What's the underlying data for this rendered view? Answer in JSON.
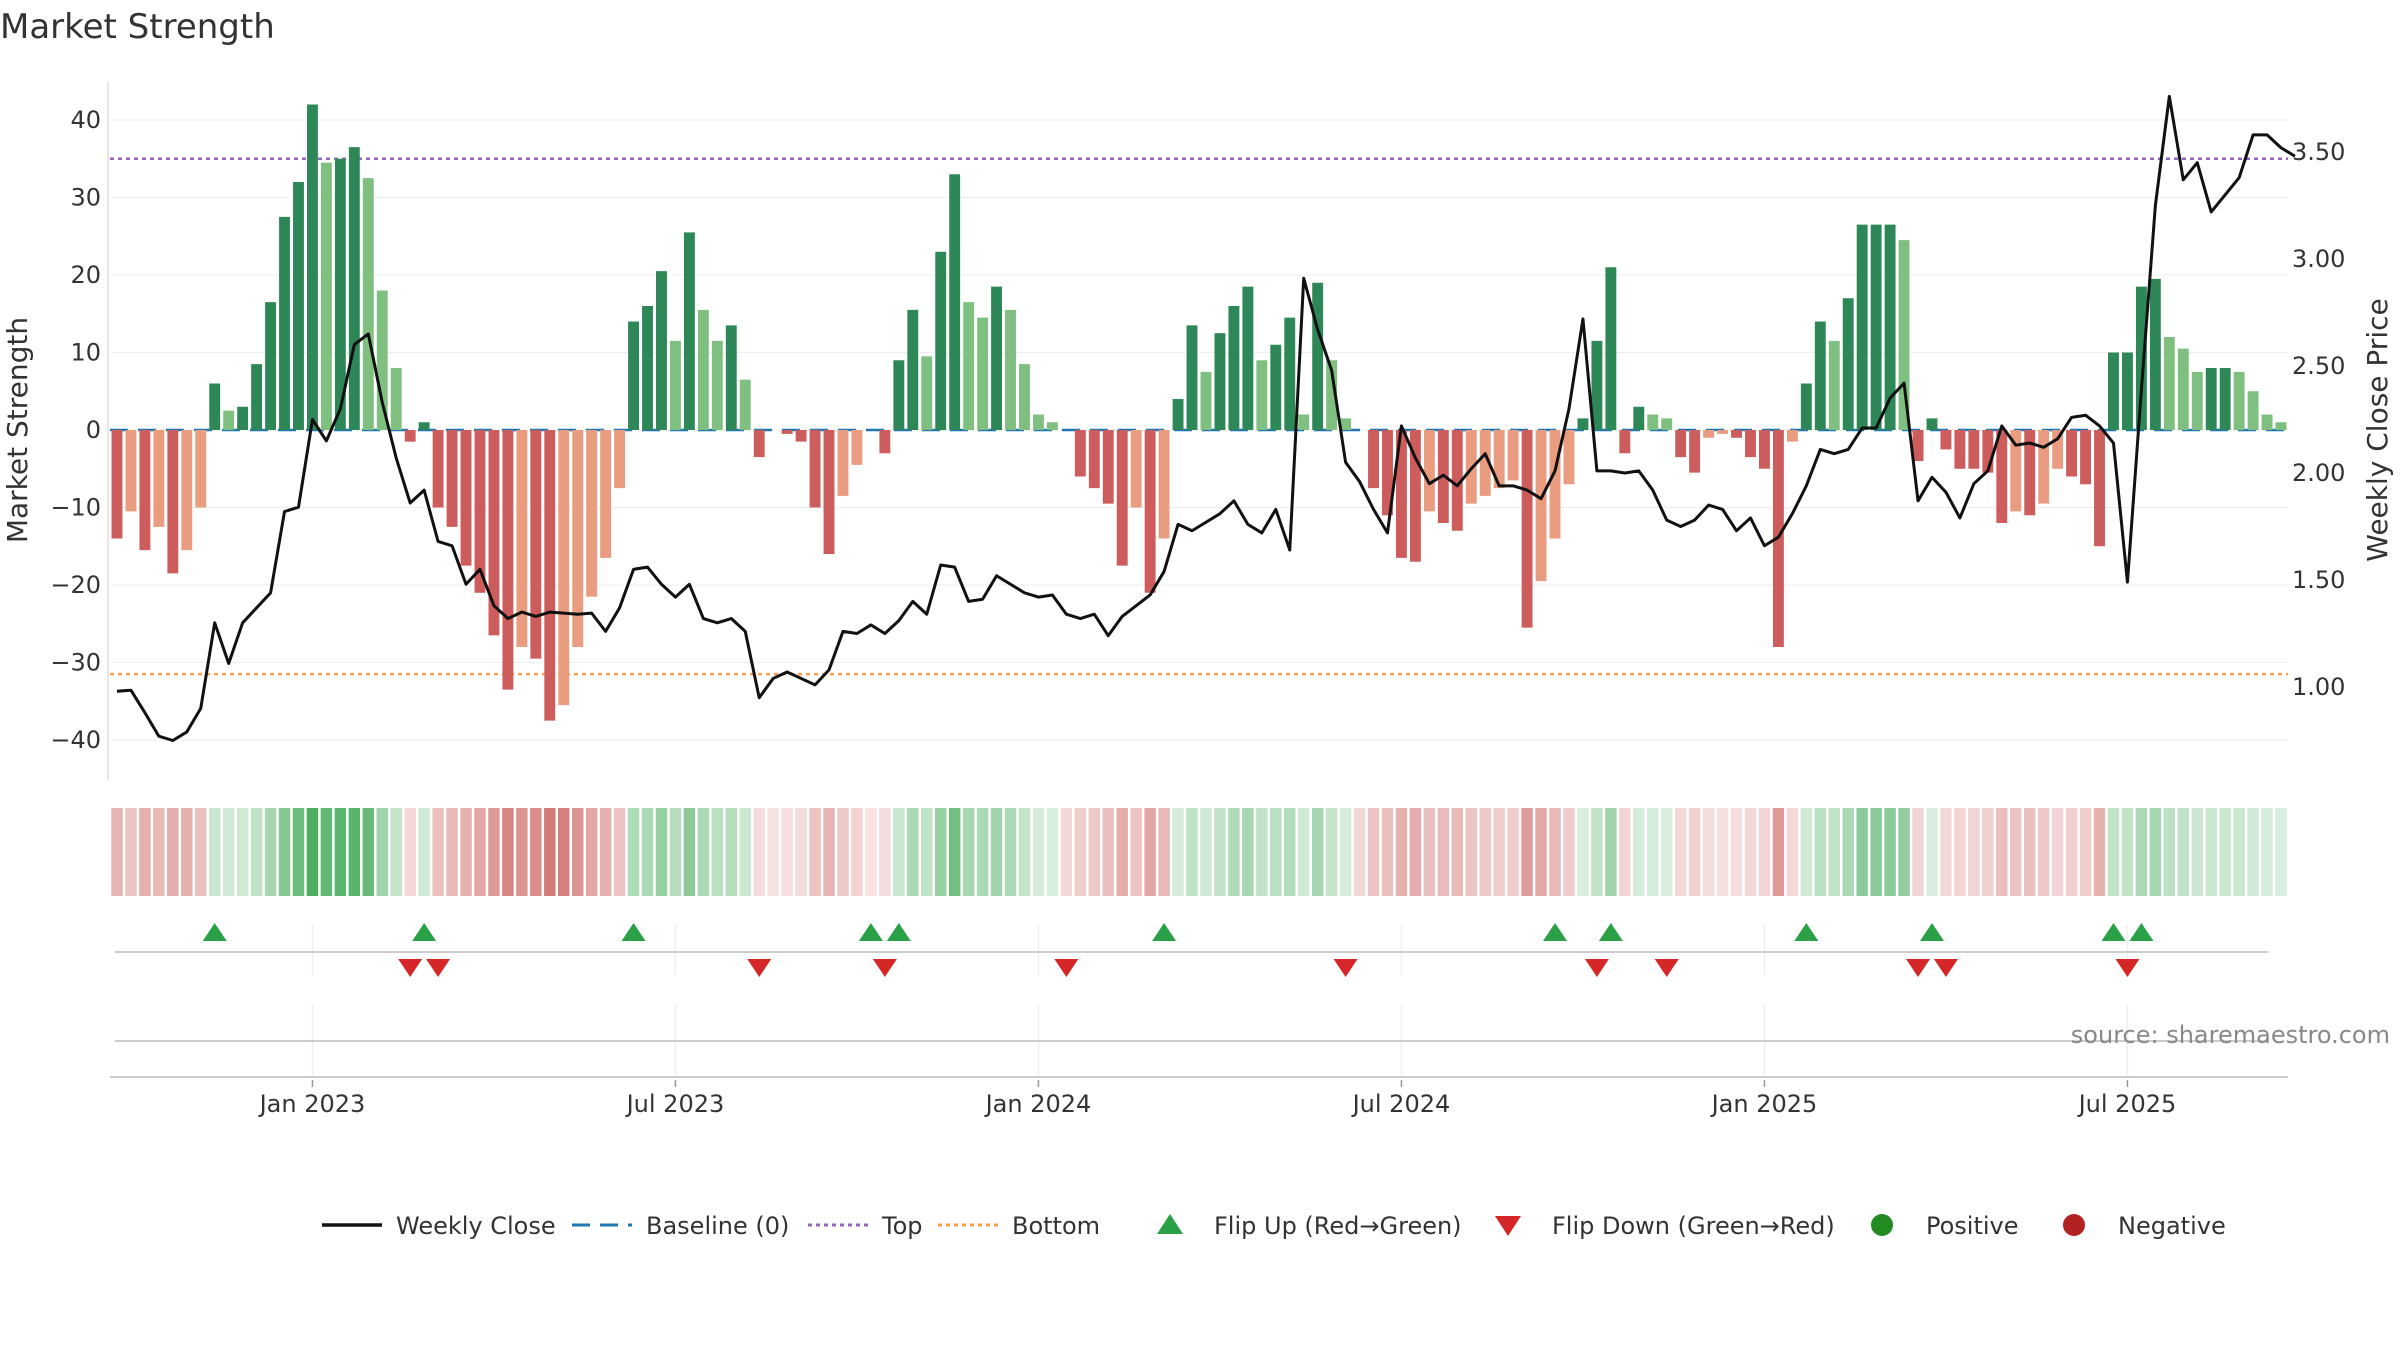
{
  "chart_data": {
    "type": "bar",
    "title": "Market Strength",
    "ylabel_left": "Market Strength",
    "ylabel_right": "Weekly Close Price",
    "y_left_range": [
      -45,
      45
    ],
    "y_left_ticks": [
      40,
      30,
      20,
      10,
      0,
      -10,
      -20,
      -30,
      -40
    ],
    "y_left_tick_labels": [
      "40",
      "30",
      "20",
      "10",
      "0",
      "−10",
      "−20",
      "−30",
      "−40"
    ],
    "y_right_range": [
      0.58,
      3.83
    ],
    "y_right_ticks": [
      3.5,
      3.0,
      2.5,
      2.0,
      1.5,
      1.0
    ],
    "y_right_tick_labels": [
      "3.50",
      "3.00",
      "2.50",
      "2.00",
      "1.50",
      "1.00"
    ],
    "top_line": 35,
    "bottom_line": -31.5,
    "baseline": 0,
    "x_tick_labels": [
      "Jan 2023",
      "Jul 2023",
      "Jan 2024",
      "Jul 2024",
      "Jan 2025",
      "Jul 2025"
    ],
    "x_tick_weeks": [
      14.5,
      40.5,
      66.5,
      92.5,
      118.5,
      144.5
    ],
    "strength": [
      -14,
      -10.5,
      -15.5,
      -12.5,
      -18.5,
      -15.5,
      -10,
      6,
      2.5,
      3,
      8.5,
      16.5,
      27.5,
      32,
      42,
      34.5,
      35,
      36.5,
      32.5,
      18,
      8,
      -1.5,
      1,
      -10,
      -12.5,
      -17.5,
      -21,
      -26.5,
      -33.5,
      -28,
      -29.5,
      -37.5,
      -35.5,
      -28,
      -21.5,
      -16.5,
      -7.5,
      14,
      16,
      20.5,
      11.5,
      25.5,
      15.5,
      11.5,
      13.5,
      6.5,
      -3.5,
      0,
      -0.5,
      -1.5,
      -10,
      -16,
      -8.5,
      -4.5,
      0,
      -3,
      9,
      15.5,
      9.5,
      23,
      33,
      16.5,
      14.5,
      18.5,
      15.5,
      8.5,
      2,
      1,
      0,
      -6,
      -7.5,
      -9.5,
      -17.5,
      -10,
      -21,
      -14,
      4,
      13.5,
      7.5,
      12.5,
      16,
      18.5,
      9,
      11,
      14.5,
      2,
      19,
      9,
      1.5,
      0,
      -7.5,
      -11,
      -16.5,
      -17,
      -10.5,
      -12,
      -13,
      -9.5,
      -8.5,
      -7.5,
      -6.5,
      -25.5,
      -19.5,
      -14,
      -7,
      1.5,
      11.5,
      21,
      -3,
      3,
      2,
      1.5,
      -3.5,
      -5.5,
      -1,
      -0.5,
      -1,
      -3.5,
      -5,
      -28,
      -1.5,
      6,
      14,
      11.5,
      17,
      26.5,
      26.5,
      26.5,
      24.5,
      -4,
      1.5,
      -2.5,
      -5,
      -5,
      -5.5,
      -12,
      -10.5,
      -11,
      -9.5,
      -5,
      -6,
      -7,
      -15,
      10,
      10,
      18.5,
      19.5,
      12,
      10.5,
      7.5,
      8,
      8,
      7.5,
      5,
      2,
      1
    ],
    "close": [
      0.98,
      0.985,
      0.88,
      0.77,
      0.75,
      0.79,
      0.9,
      1.3,
      1.11,
      1.3,
      1.37,
      1.44,
      1.82,
      1.84,
      2.25,
      2.15,
      2.3,
      2.6,
      2.65,
      2.33,
      2.07,
      1.86,
      1.92,
      1.68,
      1.66,
      1.48,
      1.55,
      1.38,
      1.32,
      1.35,
      1.33,
      1.35,
      1.345,
      1.34,
      1.345,
      1.26,
      1.37,
      1.55,
      1.56,
      1.48,
      1.42,
      1.48,
      1.32,
      1.3,
      1.32,
      1.26,
      0.95,
      1.04,
      1.07,
      1.04,
      1.01,
      1.08,
      1.26,
      1.25,
      1.29,
      1.25,
      1.31,
      1.4,
      1.34,
      1.57,
      1.56,
      1.4,
      1.41,
      1.52,
      1.48,
      1.44,
      1.42,
      1.43,
      1.34,
      1.32,
      1.34,
      1.24,
      1.33,
      1.38,
      1.43,
      1.54,
      1.76,
      1.73,
      1.77,
      1.81,
      1.87,
      1.76,
      1.72,
      1.83,
      1.64,
      2.91,
      2.67,
      2.48,
      2.05,
      1.96,
      1.83,
      1.72,
      2.22,
      2.07,
      1.95,
      1.99,
      1.94,
      2.02,
      2.09,
      1.94,
      1.94,
      1.92,
      1.88,
      2.01,
      2.3,
      2.72,
      2.01,
      2.01,
      2.0,
      2.01,
      1.92,
      1.78,
      1.75,
      1.78,
      1.85,
      1.83,
      1.73,
      1.79,
      1.66,
      1.7,
      1.81,
      1.94,
      2.11,
      2.09,
      2.11,
      2.21,
      2.21,
      2.35,
      2.42,
      1.87,
      1.98,
      1.91,
      1.79,
      1.95,
      2.01,
      2.22,
      2.13,
      2.14,
      2.12,
      2.16,
      2.26,
      2.27,
      2.22,
      2.14,
      1.49,
      2.39,
      3.25,
      3.76,
      3.37,
      3.45,
      3.22,
      3.3,
      3.38,
      3.58,
      3.58,
      3.52,
      3.48
    ],
    "band_shades": [
      0.38,
      0.3,
      0.4,
      0.35,
      0.42,
      0.4,
      0.32,
      0.25,
      0.22,
      0.23,
      0.3,
      0.42,
      0.58,
      0.7,
      0.85,
      0.75,
      0.78,
      0.8,
      0.72,
      0.45,
      0.28,
      0.2,
      0.22,
      0.32,
      0.35,
      0.4,
      0.45,
      0.52,
      0.62,
      0.55,
      0.58,
      0.68,
      0.65,
      0.55,
      0.45,
      0.4,
      0.3,
      0.38,
      0.4,
      0.5,
      0.35,
      0.55,
      0.4,
      0.33,
      0.36,
      0.25,
      0.18,
      0.15,
      0.16,
      0.18,
      0.3,
      0.38,
      0.28,
      0.22,
      0.15,
      0.18,
      0.26,
      0.4,
      0.3,
      0.5,
      0.68,
      0.42,
      0.4,
      0.45,
      0.4,
      0.28,
      0.2,
      0.18,
      0.2,
      0.26,
      0.28,
      0.32,
      0.42,
      0.3,
      0.45,
      0.36,
      0.2,
      0.3,
      0.24,
      0.3,
      0.38,
      0.42,
      0.3,
      0.33,
      0.36,
      0.22,
      0.42,
      0.28,
      0.2,
      0.2,
      0.3,
      0.33,
      0.4,
      0.42,
      0.32,
      0.34,
      0.35,
      0.3,
      0.28,
      0.26,
      0.25,
      0.5,
      0.44,
      0.36,
      0.26,
      0.18,
      0.3,
      0.45,
      0.22,
      0.2,
      0.2,
      0.18,
      0.2,
      0.24,
      0.18,
      0.16,
      0.17,
      0.2,
      0.22,
      0.52,
      0.2,
      0.22,
      0.33,
      0.3,
      0.4,
      0.55,
      0.55,
      0.55,
      0.52,
      0.22,
      0.18,
      0.2,
      0.22,
      0.22,
      0.24,
      0.33,
      0.3,
      0.32,
      0.28,
      0.22,
      0.24,
      0.26,
      0.4,
      0.3,
      0.3,
      0.4,
      0.42,
      0.32,
      0.3,
      0.25,
      0.26,
      0.26,
      0.25,
      0.22,
      0.2,
      0.18
    ],
    "flip_up_weeks": [
      7,
      22,
      37,
      54,
      56,
      75,
      103,
      107,
      121,
      130,
      143,
      145
    ],
    "flip_down_weeks": [
      21,
      23,
      46,
      55,
      68,
      88,
      106,
      111,
      129,
      131,
      144
    ],
    "colors": {
      "strong_green": "#2e8757",
      "light_green": "#7fbf7f",
      "strong_red": "#cd5c5c",
      "light_red": "#e99c80",
      "close_line": "#111111",
      "baseline": "#1f77b4",
      "top": "#9467bd",
      "bottom": "#ff9f4a",
      "flip_up": "#2aa146",
      "flip_down": "#d62728",
      "positive": "#228b22",
      "negative": "#b22222"
    },
    "legend": [
      {
        "label": "Weekly Close",
        "symbol": "line",
        "color": "#111111"
      },
      {
        "label": "Baseline (0)",
        "symbol": "dash",
        "color": "#1f77b4"
      },
      {
        "label": "Top",
        "symbol": "dot",
        "color": "#9467bd"
      },
      {
        "label": "Bottom",
        "symbol": "dot",
        "color": "#ff9f4a"
      },
      {
        "label": "Flip Up (Red→Green)",
        "symbol": "triangle-up",
        "color": "#2aa146"
      },
      {
        "label": "Flip Down (Green→Red)",
        "symbol": "triangle-down",
        "color": "#d62728"
      },
      {
        "label": "Positive",
        "symbol": "circle",
        "color": "#228b22"
      },
      {
        "label": "Negative",
        "symbol": "circle",
        "color": "#b22222"
      }
    ],
    "legend_position": "bottom"
  },
  "source_text": "source: sharemaestro.com"
}
